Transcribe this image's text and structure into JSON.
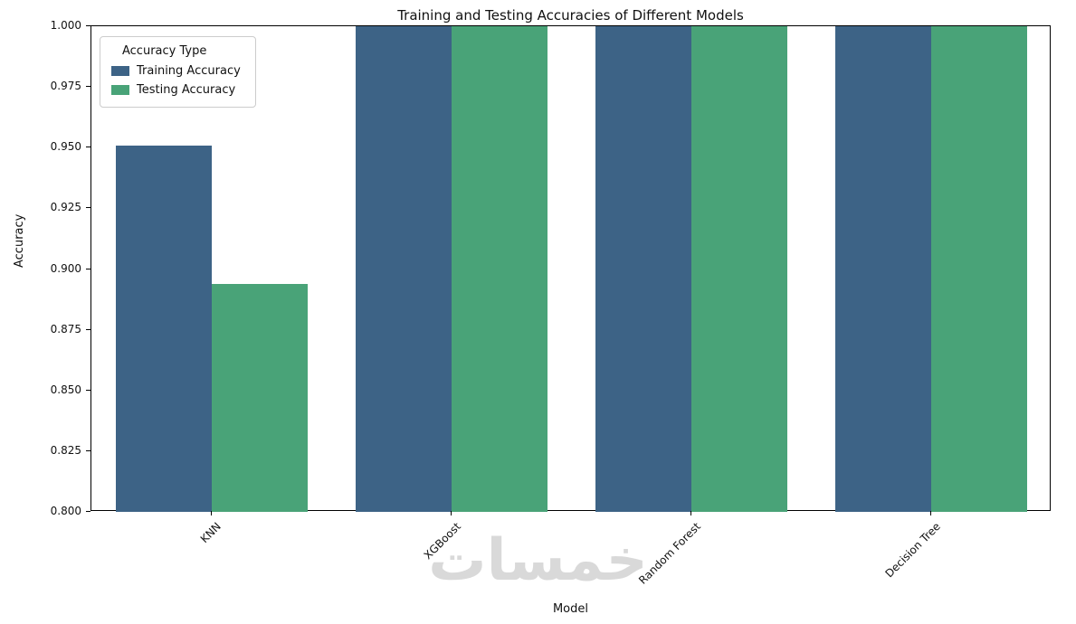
{
  "figure": {
    "watermark_text": "خمسات"
  },
  "chart_data": {
    "type": "bar",
    "title": "Training and Testing Accuracies of Different Models",
    "xlabel": "Model",
    "ylabel": "Accuracy",
    "categories": [
      "KNN",
      "XGBoost",
      "Random Forest",
      "Decision Tree"
    ],
    "series": [
      {
        "name": "Training Accuracy",
        "color": "#3d6386",
        "values": [
          0.951,
          1.0,
          1.0,
          1.0
        ]
      },
      {
        "name": "Testing Accuracy",
        "color": "#49a378",
        "values": [
          0.894,
          1.0,
          1.0,
          1.0
        ]
      }
    ],
    "ylim": [
      0.8,
      1.0
    ],
    "ytick_step": 0.025,
    "ytick_decimals": 3,
    "legend_title": "Accuracy Type",
    "legend_position": "upper-left",
    "grid": false,
    "bar_group_width_fraction": 0.8
  }
}
